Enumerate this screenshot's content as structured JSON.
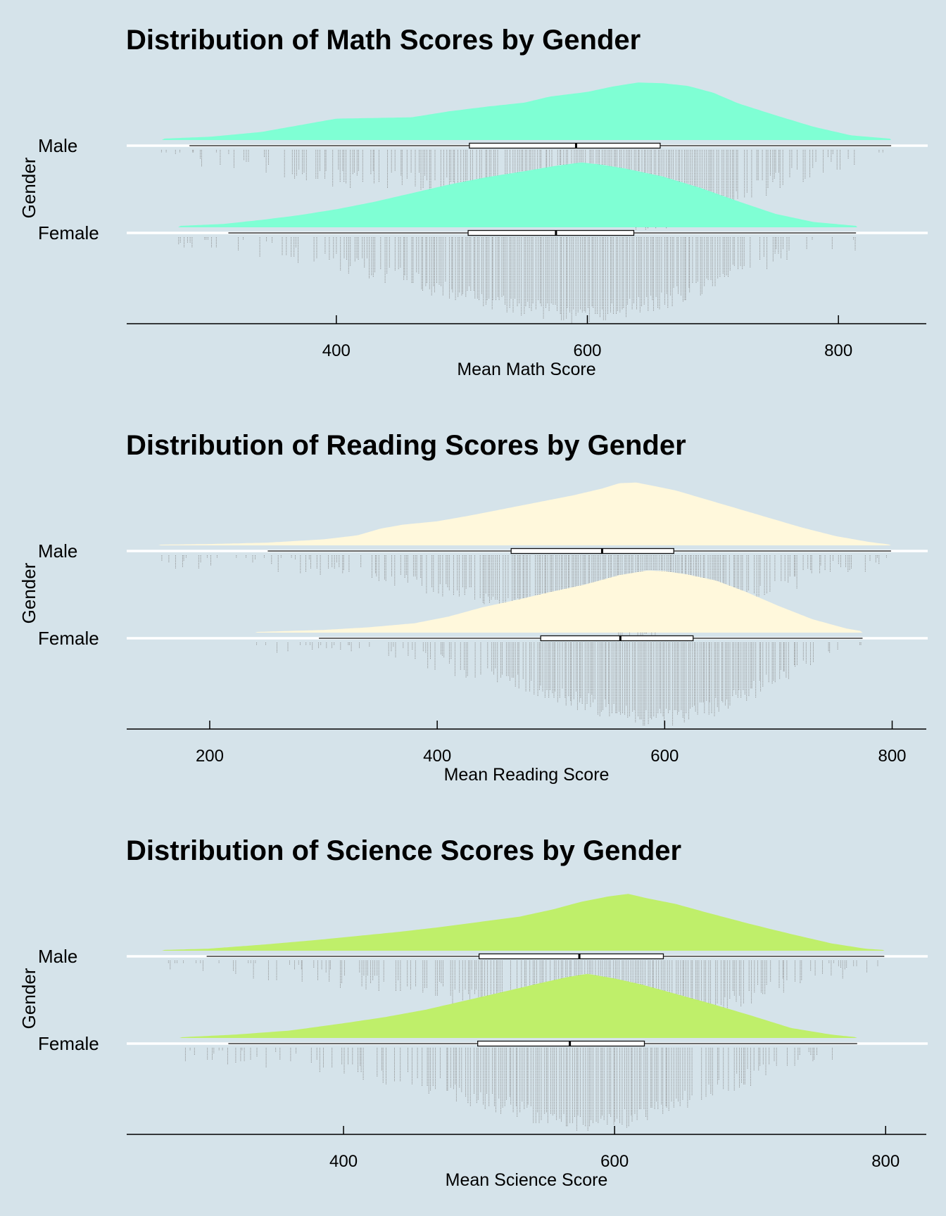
{
  "chart_data": [
    {
      "type": "raincloud",
      "title": "Distribution of Math Scores by Gender",
      "xlabel": "Mean Math Score",
      "ylabel": "Gender",
      "xlim": [
        233,
        870
      ],
      "xticks": [
        400,
        600,
        800
      ],
      "categories": [
        "Male",
        "Female"
      ],
      "color": "#7fffd4",
      "grid": true,
      "legend": "none",
      "series": [
        {
          "name": "Male",
          "whisker_low": 283,
          "q1": 506,
          "median": 591,
          "q3": 658,
          "whisker_high": 842,
          "density": [
            [
              261,
              0.02
            ],
            [
              300,
              0.05
            ],
            [
              340,
              0.12
            ],
            [
              370,
              0.22
            ],
            [
              400,
              0.32
            ],
            [
              430,
              0.33
            ],
            [
              460,
              0.34
            ],
            [
              490,
              0.43
            ],
            [
              520,
              0.5
            ],
            [
              550,
              0.56
            ],
            [
              570,
              0.65
            ],
            [
              600,
              0.72
            ],
            [
              620,
              0.8
            ],
            [
              640,
              0.86
            ],
            [
              660,
              0.85
            ],
            [
              680,
              0.81
            ],
            [
              700,
              0.71
            ],
            [
              720,
              0.55
            ],
            [
              750,
              0.37
            ],
            [
              780,
              0.2
            ],
            [
              810,
              0.07
            ],
            [
              842,
              0.02
            ]
          ]
        },
        {
          "name": "Female",
          "whisker_low": 314,
          "q1": 505,
          "median": 575,
          "q3": 637,
          "whisker_high": 814,
          "density": [
            [
              274,
              0.02
            ],
            [
              310,
              0.05
            ],
            [
              340,
              0.11
            ],
            [
              370,
              0.18
            ],
            [
              400,
              0.27
            ],
            [
              430,
              0.38
            ],
            [
              460,
              0.51
            ],
            [
              490,
              0.64
            ],
            [
              520,
              0.75
            ],
            [
              550,
              0.84
            ],
            [
              575,
              0.92
            ],
            [
              595,
              0.97
            ],
            [
              610,
              0.94
            ],
            [
              630,
              0.88
            ],
            [
              660,
              0.76
            ],
            [
              690,
              0.59
            ],
            [
              720,
              0.39
            ],
            [
              750,
              0.2
            ],
            [
              780,
              0.08
            ],
            [
              815,
              0.02
            ]
          ]
        }
      ]
    },
    {
      "type": "raincloud",
      "title": "Distribution of Reading Scores by Gender",
      "xlabel": "Mean Reading Score",
      "ylabel": "Gender",
      "xlim": [
        127,
        830
      ],
      "xticks": [
        200,
        400,
        600,
        800
      ],
      "categories": [
        "Male",
        "Female"
      ],
      "color": "#fff8dc",
      "grid": true,
      "legend": "none",
      "series": [
        {
          "name": "Male",
          "whisker_low": 251,
          "q1": 465,
          "median": 545,
          "q3": 608,
          "whisker_high": 799,
          "density": [
            [
              155,
              0.01
            ],
            [
              200,
              0.02
            ],
            [
              250,
              0.04
            ],
            [
              300,
              0.09
            ],
            [
              330,
              0.15
            ],
            [
              350,
              0.25
            ],
            [
              370,
              0.31
            ],
            [
              400,
              0.36
            ],
            [
              430,
              0.45
            ],
            [
              460,
              0.55
            ],
            [
              490,
              0.65
            ],
            [
              520,
              0.75
            ],
            [
              545,
              0.85
            ],
            [
              560,
              0.93
            ],
            [
              575,
              0.94
            ],
            [
              590,
              0.89
            ],
            [
              610,
              0.82
            ],
            [
              630,
              0.72
            ],
            [
              660,
              0.57
            ],
            [
              690,
              0.42
            ],
            [
              720,
              0.27
            ],
            [
              750,
              0.14
            ],
            [
              780,
              0.05
            ],
            [
              799,
              0.01
            ]
          ]
        },
        {
          "name": "Female",
          "whisker_low": 296,
          "q1": 491,
          "median": 561,
          "q3": 625,
          "whisker_high": 774,
          "density": [
            [
              240,
              0.01
            ],
            [
              300,
              0.04
            ],
            [
              340,
              0.08
            ],
            [
              380,
              0.14
            ],
            [
              410,
              0.24
            ],
            [
              440,
              0.38
            ],
            [
              470,
              0.49
            ],
            [
              500,
              0.61
            ],
            [
              530,
              0.72
            ],
            [
              560,
              0.86
            ],
            [
              585,
              0.93
            ],
            [
              600,
              0.92
            ],
            [
              620,
              0.87
            ],
            [
              645,
              0.78
            ],
            [
              670,
              0.62
            ],
            [
              700,
              0.4
            ],
            [
              730,
              0.2
            ],
            [
              760,
              0.06
            ],
            [
              774,
              0.02
            ]
          ]
        }
      ]
    },
    {
      "type": "raincloud",
      "title": "Distribution of Science Scores by Gender",
      "xlabel": "Mean Science Score",
      "ylabel": "Gender",
      "xlim": [
        240,
        830
      ],
      "xticks": [
        400,
        600,
        800
      ],
      "categories": [
        "Male",
        "Female"
      ],
      "color": "#bfef6a",
      "grid": true,
      "legend": "none",
      "series": [
        {
          "name": "Male",
          "whisker_low": 299,
          "q1": 500,
          "median": 574,
          "q3": 636,
          "whisker_high": 799,
          "density": [
            [
              266,
              0.01
            ],
            [
              300,
              0.03
            ],
            [
              340,
              0.09
            ],
            [
              380,
              0.16
            ],
            [
              410,
              0.22
            ],
            [
              440,
              0.28
            ],
            [
              470,
              0.35
            ],
            [
              500,
              0.43
            ],
            [
              530,
              0.51
            ],
            [
              555,
              0.62
            ],
            [
              575,
              0.73
            ],
            [
              595,
              0.81
            ],
            [
              610,
              0.85
            ],
            [
              625,
              0.78
            ],
            [
              645,
              0.7
            ],
            [
              670,
              0.56
            ],
            [
              700,
              0.4
            ],
            [
              730,
              0.25
            ],
            [
              760,
              0.11
            ],
            [
              785,
              0.03
            ],
            [
              799,
              0.01
            ]
          ]
        },
        {
          "name": "Female",
          "whisker_low": 315,
          "q1": 499,
          "median": 567,
          "q3": 622,
          "whisker_high": 779,
          "density": [
            [
              279,
              0.01
            ],
            [
              320,
              0.05
            ],
            [
              360,
              0.11
            ],
            [
              400,
              0.22
            ],
            [
              430,
              0.31
            ],
            [
              460,
              0.42
            ],
            [
              490,
              0.56
            ],
            [
              520,
              0.7
            ],
            [
              545,
              0.82
            ],
            [
              565,
              0.91
            ],
            [
              580,
              0.96
            ],
            [
              600,
              0.89
            ],
            [
              620,
              0.8
            ],
            [
              645,
              0.66
            ],
            [
              670,
              0.52
            ],
            [
              700,
              0.34
            ],
            [
              730,
              0.15
            ],
            [
              760,
              0.05
            ],
            [
              779,
              0.01
            ]
          ]
        }
      ]
    }
  ]
}
